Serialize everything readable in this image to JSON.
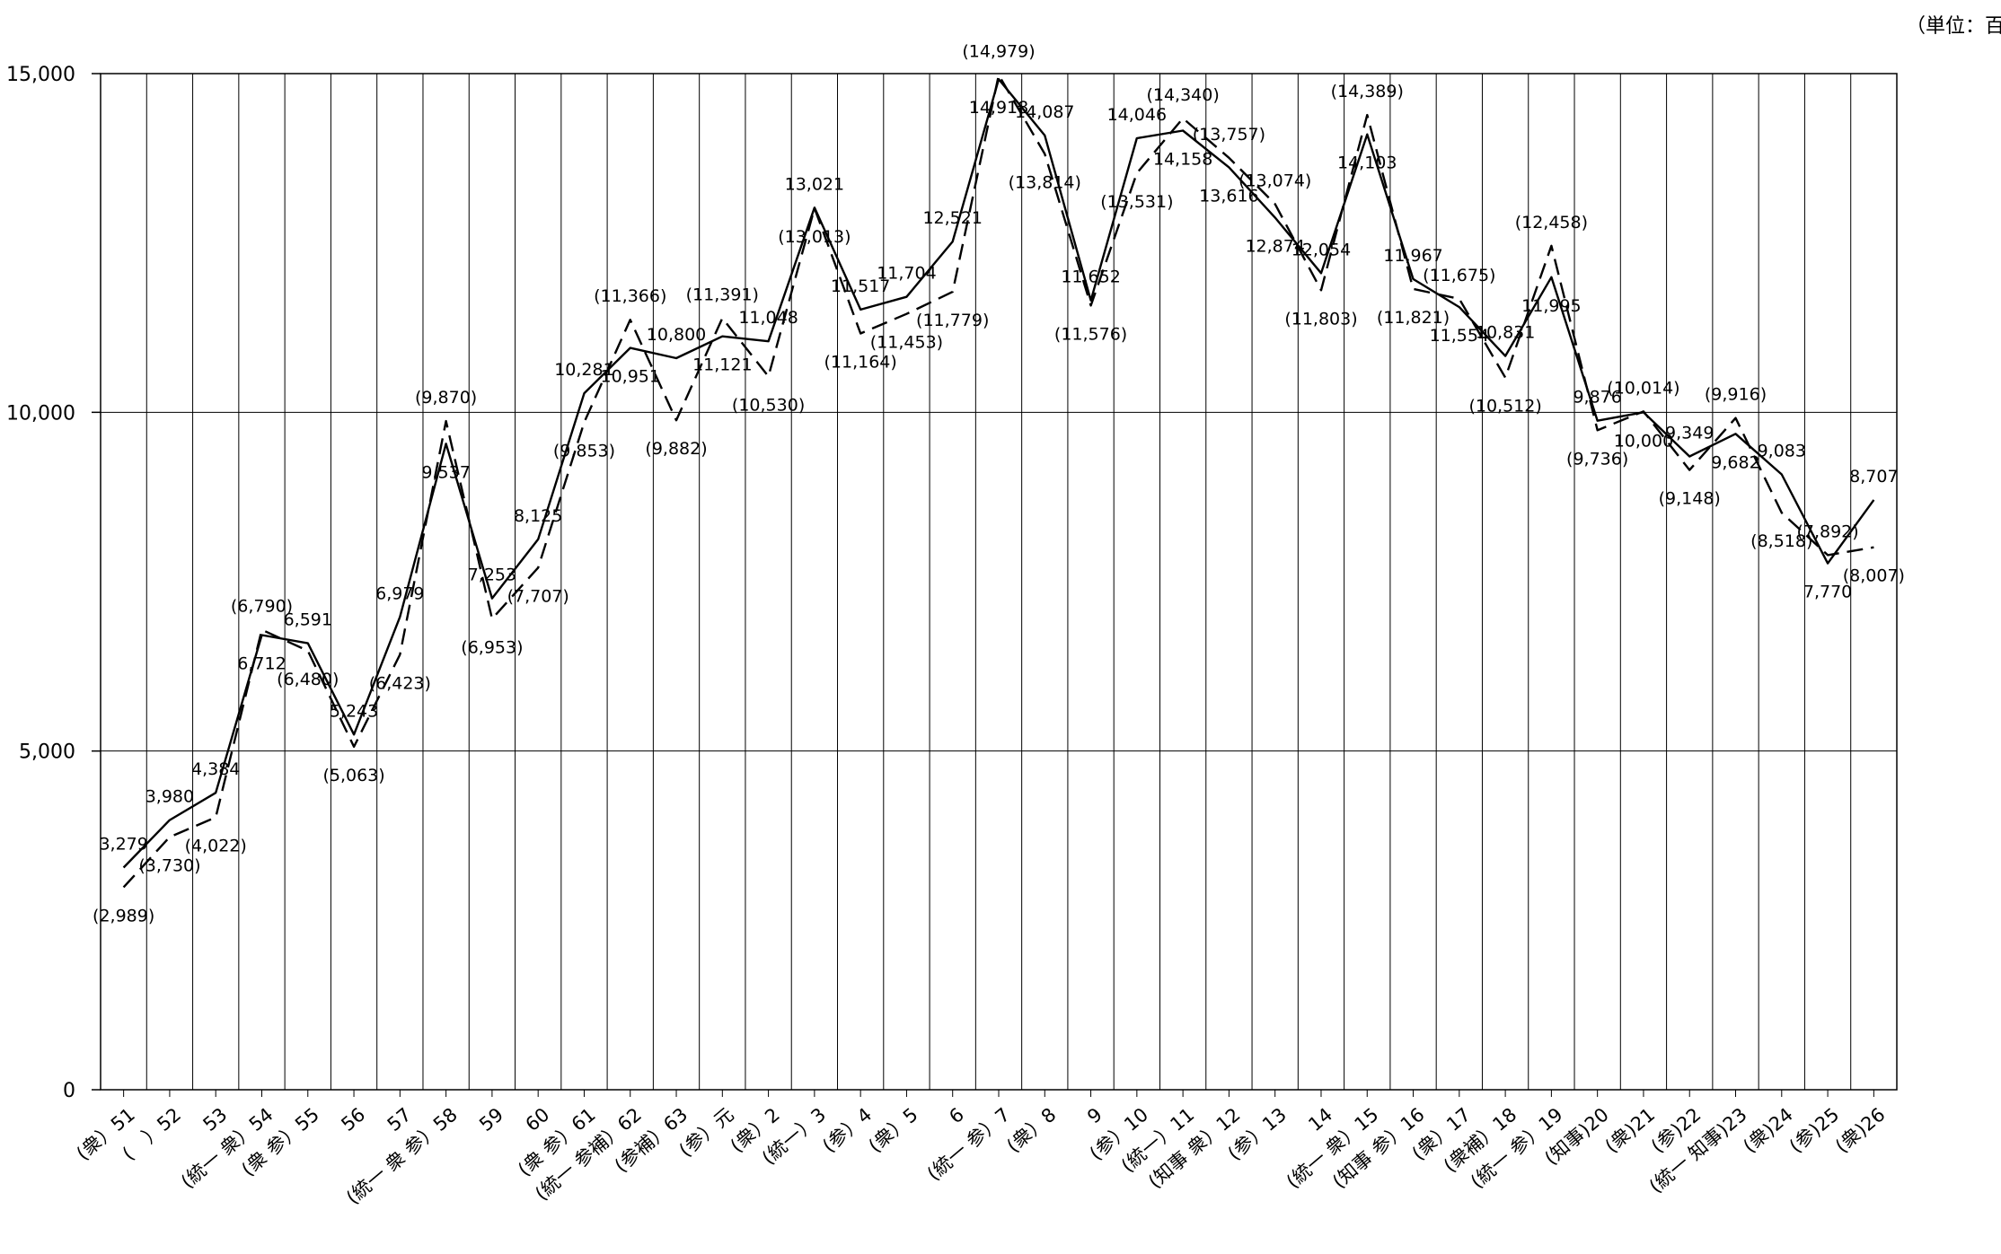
{
  "chart_data": {
    "type": "line",
    "unit_label": "（単位：百万",
    "ylim": [
      0,
      15000
    ],
    "y_ticks": [
      {
        "value": 0,
        "label": "0"
      },
      {
        "value": 5000,
        "label": "5,000"
      },
      {
        "value": 10000,
        "label": "10,000"
      },
      {
        "value": 15000,
        "label": "15,000"
      }
    ],
    "grid": true,
    "categories": [
      "(衆）51",
      "(　）52",
      "53",
      "(統一 衆）54",
      "(衆 参）55",
      "56",
      "57",
      "(統一 衆 参）58",
      "59",
      "60",
      "(衆 参）61",
      "(統一 参補）62",
      "(参補）63",
      "(参）元",
      "(衆）2",
      "(統一）3",
      "(参）4",
      "(衆）5",
      "6",
      "(統一 参）7",
      "(衆）8",
      "9",
      "(参）10",
      "(統一）11",
      "(知事 衆）12",
      "(参）13",
      "14",
      "(統一 衆）15",
      "(知事 参）16",
      "(衆）17",
      "(衆補）18",
      "(統一 参）19",
      "(知事)20",
      "(衆)21",
      "(参)22",
      "(統一 知事)23",
      "(衆)24",
      "(参)25",
      "(衆)26"
    ],
    "series": [
      {
        "style": "solid",
        "values": [
          3279,
          3980,
          4384,
          6712,
          6591,
          5243,
          6979,
          9537,
          7253,
          8125,
          10281,
          10951,
          10800,
          11121,
          11048,
          13021,
          11517,
          11704,
          12521,
          14918,
          14087,
          11652,
          14046,
          14158,
          13616,
          12874,
          12054,
          14103,
          11967,
          11554,
          10831,
          11995,
          9876,
          10000,
          9349,
          9682,
          9083,
          7770,
          8707
        ],
        "labels": [
          "3,279",
          "3,980",
          "4,384",
          "6,712",
          "6,591",
          "5,243",
          "6,979",
          "9,537",
          "7,253",
          "8,125",
          "10,281",
          "10,951",
          "10,800",
          "11,121",
          "11,048",
          "13,021",
          "11,517",
          "11,704",
          "12,521",
          "14,918",
          "14,087",
          "11,652",
          "14,046",
          "14,158",
          "13,616",
          "12,874",
          "12,054",
          "14,103",
          "11,967",
          "11,554",
          "10,831",
          "11,995",
          "9,876",
          "10,000",
          "9,349",
          "9,682",
          "9,083",
          "7,770",
          "8,707"
        ]
      },
      {
        "style": "dashed",
        "values": [
          2989,
          3730,
          4022,
          6790,
          6480,
          5063,
          6423,
          9870,
          6953,
          7707,
          9853,
          11366,
          9882,
          11391,
          10530,
          13013,
          11164,
          11453,
          11779,
          14979,
          13814,
          11576,
          13531,
          14340,
          13757,
          13074,
          11803,
          14389,
          11821,
          11675,
          10512,
          12458,
          9736,
          10014,
          9148,
          9916,
          8518,
          7892,
          8007
        ],
        "labels": [
          "(2,989)",
          "(3,730)",
          "(4,022)",
          "(6,790)",
          "(6,480)",
          "(5,063)",
          "(6,423)",
          "(9,870)",
          "(6,953)",
          "(7,707)",
          "(9,853)",
          "(11,366)",
          "(9,882)",
          "(11,391)",
          "(10,530)",
          "(13,013)",
          "(11,164)",
          "(11,453)",
          "(11,779)",
          "(14,979)",
          "(13,814)",
          "(11,576)",
          "(13,531)",
          "(14,340)",
          "(13,757)",
          "(13,074)",
          "(11,803)",
          "(14,389)",
          "(11,821)",
          "(11,675)",
          "(10,512)",
          "(12,458)",
          "(9,736)",
          "(10,014)",
          "(9,148)",
          "(9,916)",
          "(8,518)",
          "(7,892)",
          "(8,007)"
        ]
      }
    ]
  }
}
